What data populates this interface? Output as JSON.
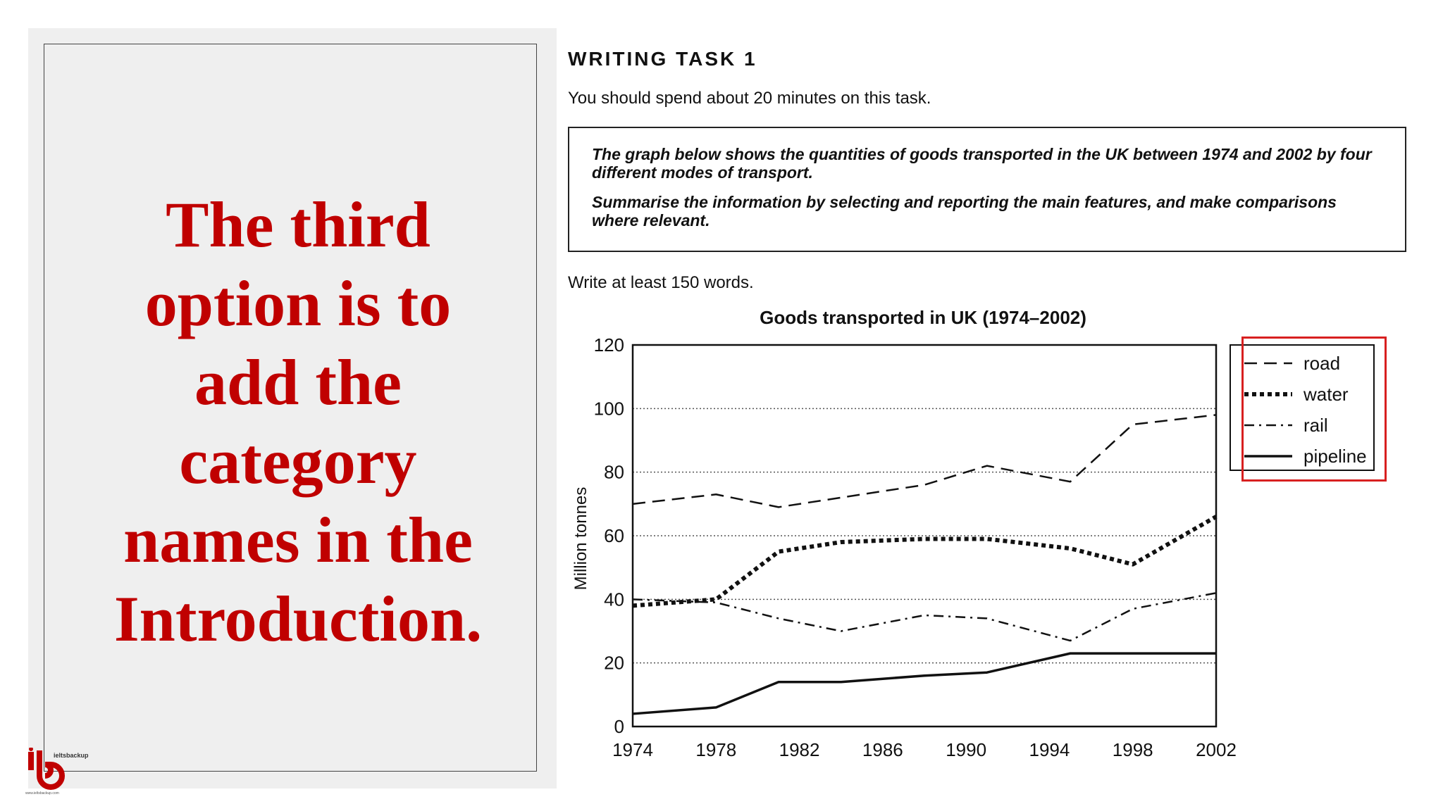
{
  "headline": "The third option is to add the category names in the Introduction.",
  "task": {
    "title": "WRITING TASK 1",
    "instruction": "You should spend about 20 minutes on this task.",
    "prompt_line1": "The graph below shows the quantities of goods transported in the UK between 1974 and 2002 by four different modes of transport.",
    "prompt_line2": "Summarise the information by selecting and reporting the main features, and make comparisons where relevant.",
    "word_count": "Write at least 150 words."
  },
  "logo": {
    "text": "ieltsbackup",
    "url_text": "www.ieltsbackup.com"
  },
  "colors": {
    "headline": "#c00000",
    "highlight": "#d82020",
    "panel": "#efefef"
  },
  "chart_data": {
    "type": "line",
    "title": "Goods transported in UK (1974–2002)",
    "ylabel": "Million tonnes",
    "xlabel": "",
    "ylim": [
      0,
      120
    ],
    "xlim": [
      1974,
      2002
    ],
    "yticks": [
      0,
      20,
      40,
      60,
      80,
      100,
      120
    ],
    "xticks": [
      1974,
      1978,
      1982,
      1986,
      1990,
      1994,
      1998,
      2002
    ],
    "grid": "horizontal dotted",
    "legend": "right",
    "series": [
      {
        "name": "road",
        "style": "dashed",
        "x": [
          1974,
          1978,
          1981,
          1984,
          1988,
          1991,
          1995,
          1998,
          2002
        ],
        "values": [
          70,
          73,
          69,
          72,
          76,
          82,
          77,
          95,
          98
        ]
      },
      {
        "name": "water",
        "style": "dotted",
        "x": [
          1974,
          1978,
          1981,
          1984,
          1988,
          1991,
          1995,
          1998,
          2002
        ],
        "values": [
          38,
          40,
          55,
          58,
          59,
          59,
          56,
          51,
          66
        ]
      },
      {
        "name": "rail",
        "style": "dashdot",
        "x": [
          1974,
          1978,
          1981,
          1984,
          1988,
          1991,
          1995,
          1998,
          2002
        ],
        "values": [
          40,
          39,
          34,
          30,
          35,
          34,
          27,
          37,
          42
        ]
      },
      {
        "name": "pipeline",
        "style": "solid",
        "x": [
          1974,
          1978,
          1981,
          1984,
          1988,
          1991,
          1995,
          1998,
          2002
        ],
        "values": [
          4,
          6,
          14,
          14,
          16,
          17,
          23,
          23,
          23
        ]
      }
    ]
  }
}
